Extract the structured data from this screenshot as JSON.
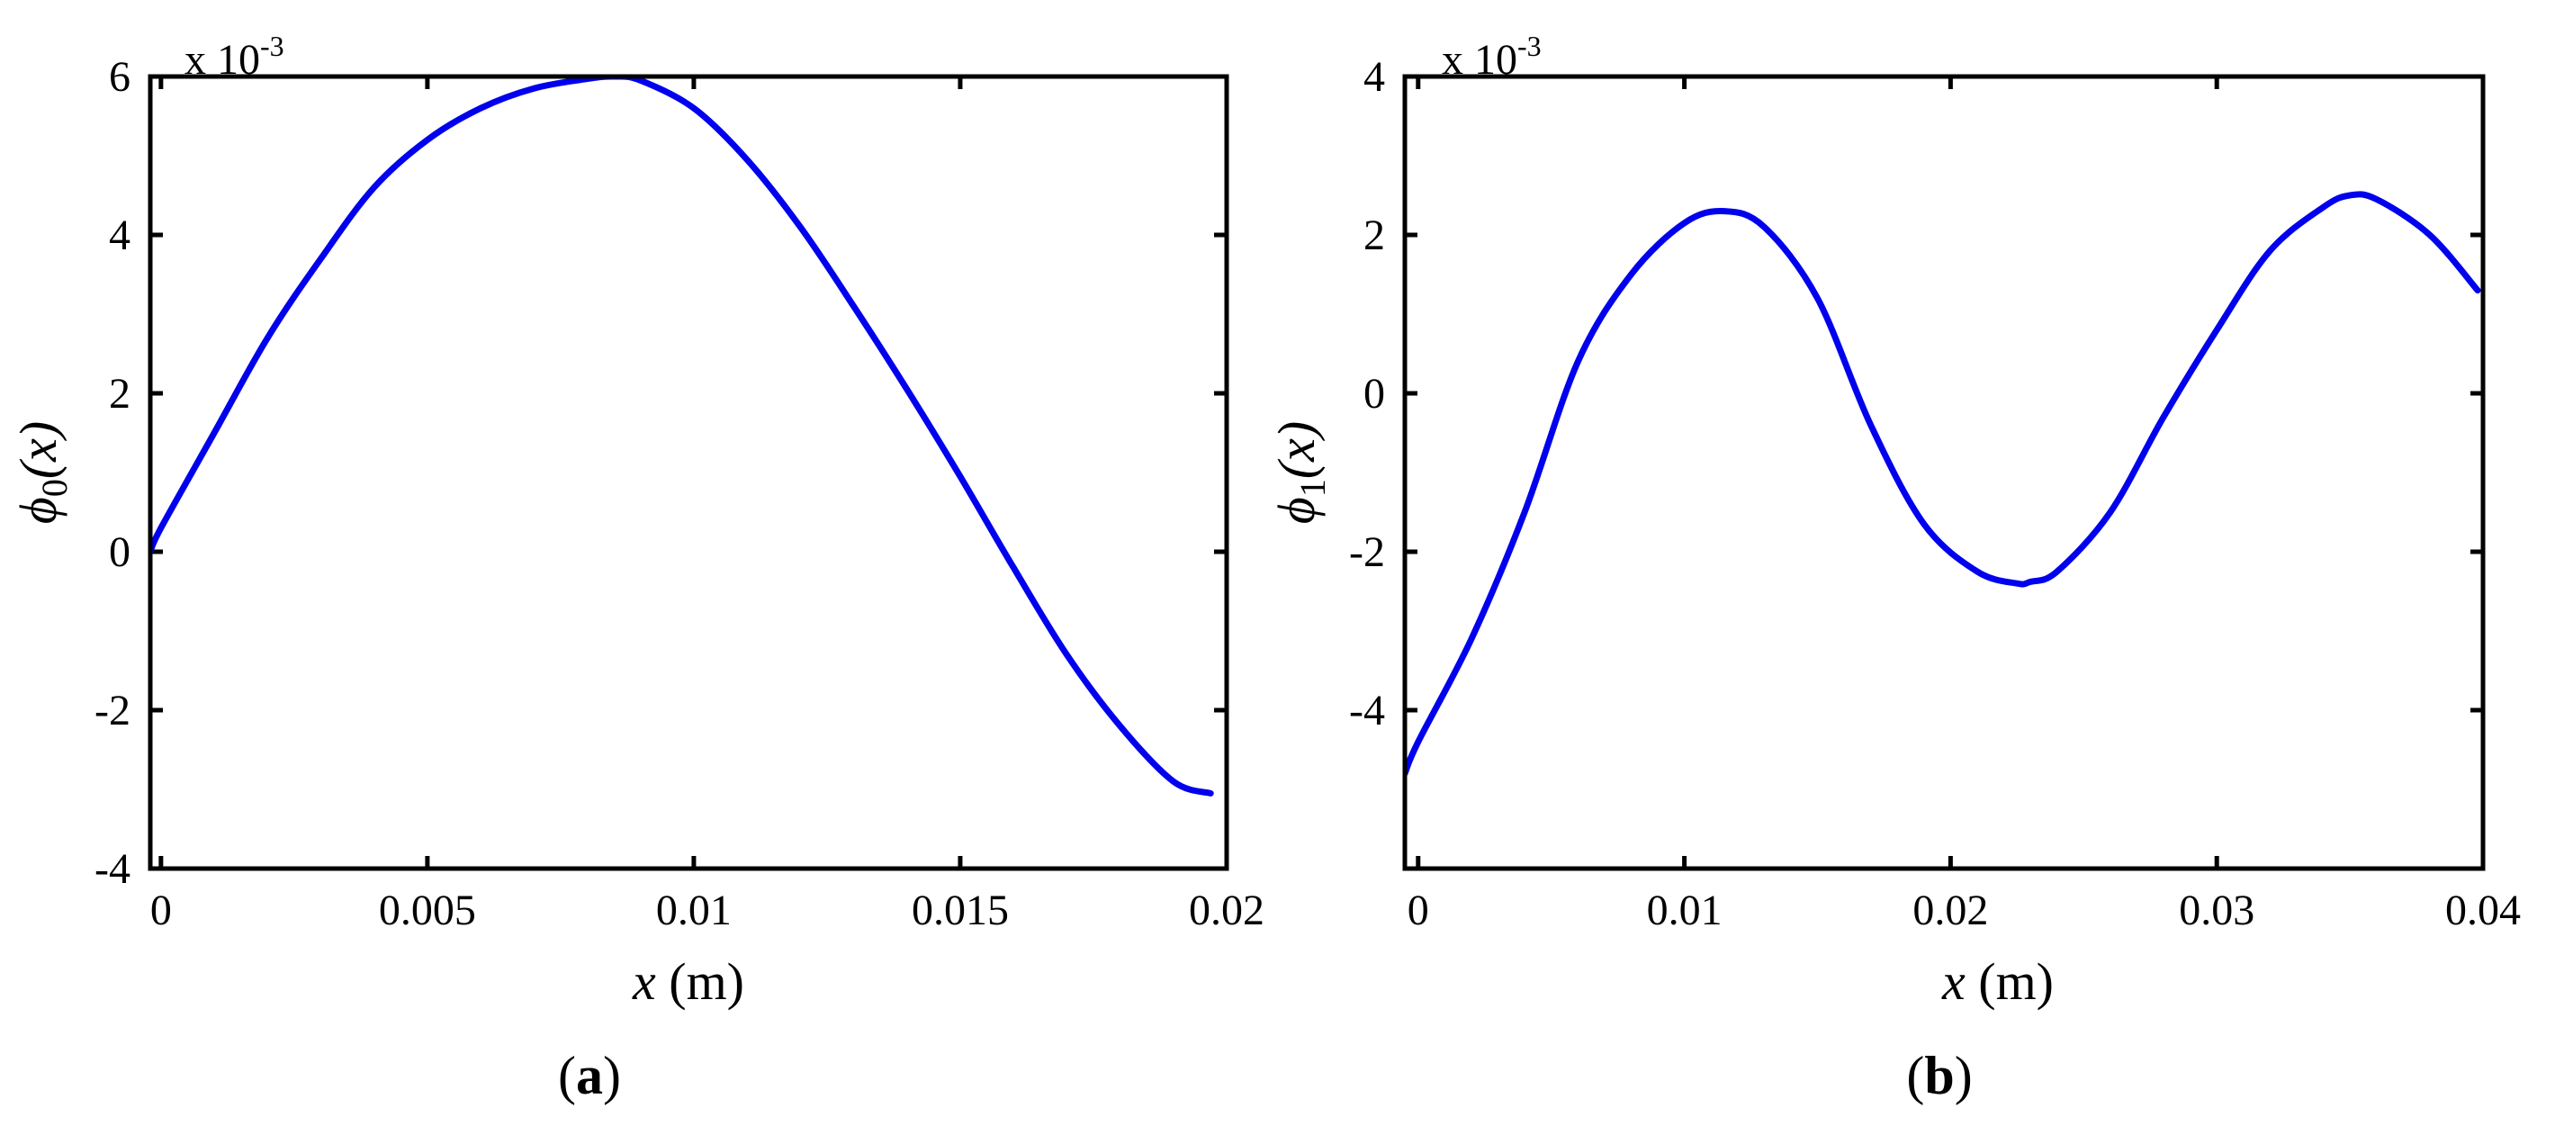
{
  "chart_data": [
    {
      "panel": "(a)",
      "panel_letter": "a",
      "type": "line",
      "exponent_note": "x 10",
      "exponent_power": "-3",
      "xlabel_var": "x",
      "xlabel_unit": " (m)",
      "ylabel_base": "ϕ",
      "ylabel_sub": "0",
      "ylabel_arg": "(x)",
      "xlim": [
        -0.0002,
        0.02
      ],
      "ylim": [
        -4,
        6
      ],
      "xticks": [
        0,
        0.005,
        0.01,
        0.015,
        0.02
      ],
      "xtick_labels": [
        "0",
        "0.005",
        "0.01",
        "0.015",
        "0.02"
      ],
      "yticks": [
        -4,
        -2,
        0,
        2,
        4,
        6
      ],
      "ytick_labels": [
        "-4",
        "-2",
        "0",
        "2",
        "4",
        "6"
      ],
      "color": "#0000ee",
      "series": [
        {
          "x": [
            -0.0002,
            0.0,
            0.001,
            0.002,
            0.003,
            0.004,
            0.005,
            0.006,
            0.007,
            0.008,
            0.0085,
            0.009,
            0.01,
            0.011,
            0.012,
            0.013,
            0.014,
            0.015,
            0.016,
            0.017,
            0.018,
            0.019,
            0.0197
          ],
          "y": [
            0.0,
            0.3,
            1.5,
            2.7,
            3.7,
            4.6,
            5.2,
            5.6,
            5.85,
            5.97,
            6.0,
            5.95,
            5.6,
            4.95,
            4.1,
            3.1,
            2.05,
            0.95,
            -0.2,
            -1.3,
            -2.2,
            -2.9,
            -3.05
          ]
        }
      ]
    },
    {
      "panel": "(b)",
      "panel_letter": "b",
      "type": "line",
      "exponent_note": "x 10",
      "exponent_power": "-3",
      "xlabel_var": "x",
      "xlabel_unit": " (m)",
      "ylabel_base": "ϕ",
      "ylabel_sub": "1",
      "ylabel_arg": "(x)",
      "xlim": [
        -0.0005,
        0.04
      ],
      "ylim": [
        -6,
        4
      ],
      "xticks": [
        0,
        0.01,
        0.02,
        0.03,
        0.04
      ],
      "xtick_labels": [
        "0",
        "0.01",
        "0.02",
        "0.03",
        "0.04"
      ],
      "yticks": [
        -4,
        -2,
        0,
        2,
        4
      ],
      "ytick_labels": [
        "-4",
        "-2",
        "0",
        "2",
        "4"
      ],
      "color": "#0000ee",
      "series": [
        {
          "x": [
            -0.0005,
            0.0,
            0.002,
            0.004,
            0.006,
            0.008,
            0.01,
            0.0115,
            0.013,
            0.015,
            0.017,
            0.019,
            0.021,
            0.0225,
            0.023,
            0.024,
            0.026,
            0.028,
            0.03,
            0.032,
            0.034,
            0.035,
            0.036,
            0.038,
            0.0398
          ],
          "y": [
            -4.8,
            -4.4,
            -3.1,
            -1.5,
            0.4,
            1.5,
            2.15,
            2.3,
            2.1,
            1.2,
            -0.4,
            -1.65,
            -2.25,
            -2.4,
            -2.38,
            -2.25,
            -1.5,
            -0.3,
            0.8,
            1.8,
            2.35,
            2.5,
            2.45,
            2.0,
            1.3
          ]
        }
      ]
    }
  ]
}
